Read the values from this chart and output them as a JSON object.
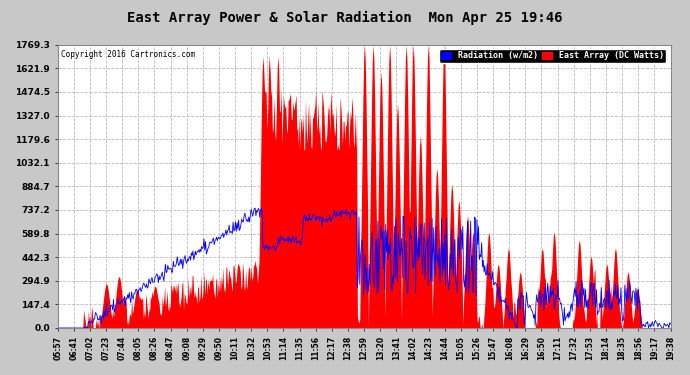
{
  "title": "East Array Power & Solar Radiation  Mon Apr 25 19:46",
  "copyright": "Copyright 2016 Cartronics.com",
  "legend_blue": "Radiation (w/m2)",
  "legend_red": "East Array (DC Watts)",
  "ymax": 1769.3,
  "yticks": [
    0.0,
    147.4,
    294.9,
    442.3,
    589.8,
    737.2,
    884.7,
    1032.1,
    1179.6,
    1327.0,
    1474.5,
    1621.9,
    1769.3
  ],
  "ytick_labels": [
    "0.0",
    "147.4",
    "294.9",
    "442.3",
    "589.8",
    "737.2",
    "884.7",
    "1032.1",
    "1179.6",
    "1327.0",
    "1474.5",
    "1621.9",
    "1769.3"
  ],
  "xtick_labels": [
    "05:57",
    "06:41",
    "07:02",
    "07:23",
    "07:44",
    "08:05",
    "08:26",
    "08:47",
    "09:08",
    "09:29",
    "09:50",
    "10:11",
    "10:32",
    "10:53",
    "11:14",
    "11:35",
    "11:56",
    "12:17",
    "12:38",
    "12:59",
    "13:20",
    "13:41",
    "14:02",
    "14:23",
    "14:44",
    "15:05",
    "15:26",
    "15:47",
    "16:08",
    "16:29",
    "16:50",
    "17:11",
    "17:32",
    "17:53",
    "18:14",
    "18:35",
    "18:56",
    "19:17",
    "19:38"
  ],
  "bg_color": "#c8c8c8",
  "plot_bg_color": "#ffffff",
  "grid_color": "#aaaaaa",
  "title_color": "#000000",
  "red_color": "#ff0000",
  "blue_color": "#0000ff"
}
